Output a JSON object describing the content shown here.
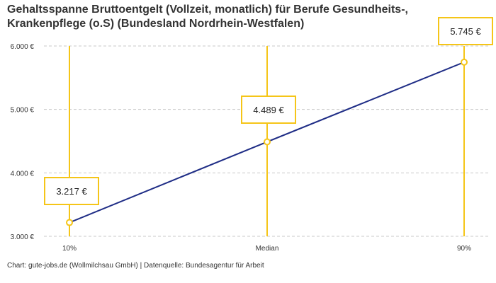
{
  "title": "Gehaltsspanne Bruttoentgelt (Vollzeit, monatlich) für Berufe Gesundheits-, Krankenpflege (o.S) (Bundesland Nordrhein-Westfalen)",
  "footer": "Chart: gute-jobs.de (Wollmilchsau GmbH) | Datenquelle: Bundesagentur für Arbeit",
  "colors": {
    "line": "#1f2d86",
    "accent": "#f5c518",
    "grid": "#c8c8c8",
    "text": "#333333"
  },
  "chart_data": {
    "type": "line",
    "title": "Gehaltsspanne Bruttoentgelt (Vollzeit, monatlich) für Berufe Gesundheits-, Krankenpflege (o.S) (Bundesland Nordrhein-Westfalen)",
    "categories": [
      "10%",
      "Median",
      "90%"
    ],
    "values": [
      3217,
      4489,
      5745
    ],
    "value_labels": [
      "3.217 €",
      "4.489 €",
      "5.745 €"
    ],
    "yticks": [
      3000,
      4000,
      5000,
      6000
    ],
    "ytick_labels": [
      "3.000 €",
      "4.000 €",
      "5.000 €",
      "6.000 €"
    ],
    "ylim": [
      3000,
      6000
    ],
    "xlabel": "",
    "ylabel": "",
    "grid": "horizontal dashed",
    "legend": "none"
  }
}
